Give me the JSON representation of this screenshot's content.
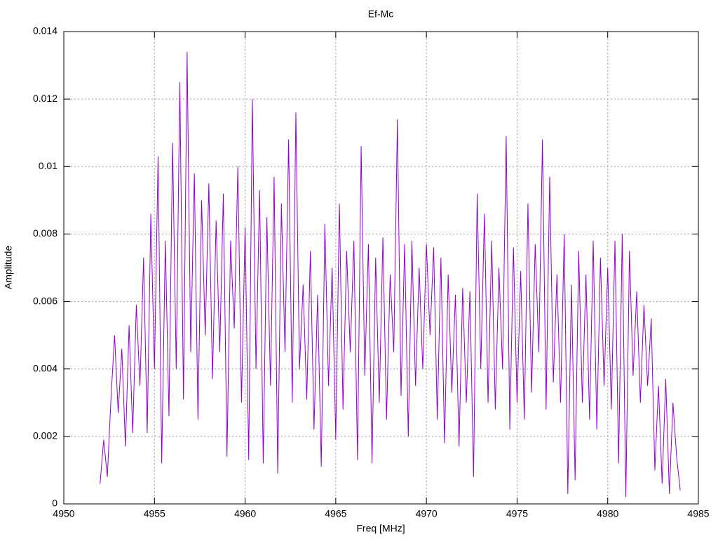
{
  "chart_data": {
    "type": "line",
    "title": "Ef-Mc",
    "x_label": "Freq [MHz]",
    "y_label": "Amplitude",
    "xlim": [
      4950,
      4985
    ],
    "xticks": [
      4950,
      4955,
      4960,
      4965,
      4970,
      4975,
      4980,
      4985
    ],
    "ylim": [
      0,
      0.014
    ],
    "yticks": [
      0,
      0.002,
      0.004,
      0.006,
      0.008,
      0.01,
      0.012,
      0.014
    ],
    "grid": true,
    "x": [
      4952,
      4952.2,
      4952.4,
      4952.6,
      4952.8,
      4953,
      4953.2,
      4953.4,
      4953.6,
      4953.8,
      4954,
      4954.2,
      4954.4,
      4954.6,
      4954.8,
      4955,
      4955.2,
      4955.4,
      4955.6,
      4955.8,
      4956,
      4956.2,
      4956.4,
      4956.6,
      4956.8,
      4957,
      4957.2,
      4957.4,
      4957.6,
      4957.8,
      4958,
      4958.2,
      4958.4,
      4958.6,
      4958.8,
      4959,
      4959.2,
      4959.4,
      4959.6,
      4959.8,
      4960,
      4960.2,
      4960.4,
      4960.6,
      4960.8,
      4961,
      4961.2,
      4961.4,
      4961.6,
      4961.8,
      4962,
      4962.2,
      4962.4,
      4962.6,
      4962.8,
      4963,
      4963.2,
      4963.4,
      4963.6,
      4963.8,
      4964,
      4964.2,
      4964.4,
      4964.6,
      4964.8,
      4965,
      4965.2,
      4965.4,
      4965.6,
      4965.8,
      4966,
      4966.2,
      4966.4,
      4966.6,
      4966.8,
      4967,
      4967.2,
      4967.4,
      4967.6,
      4967.8,
      4968,
      4968.2,
      4968.4,
      4968.6,
      4968.8,
      4969,
      4969.2,
      4969.4,
      4969.6,
      4969.8,
      4970,
      4970.2,
      4970.4,
      4970.6,
      4970.8,
      4971,
      4971.2,
      4971.4,
      4971.6,
      4971.8,
      4972,
      4972.2,
      4972.4,
      4972.6,
      4972.8,
      4973,
      4973.2,
      4973.4,
      4973.6,
      4973.8,
      4974,
      4974.2,
      4974.4,
      4974.6,
      4974.8,
      4975,
      4975.2,
      4975.4,
      4975.6,
      4975.8,
      4976,
      4976.2,
      4976.4,
      4976.6,
      4976.8,
      4977,
      4977.2,
      4977.4,
      4977.6,
      4977.8,
      4978,
      4978.2,
      4978.4,
      4978.6,
      4978.8,
      4979,
      4979.2,
      4979.4,
      4979.6,
      4979.8,
      4980,
      4980.2,
      4980.4,
      4980.6,
      4980.8,
      4981,
      4981.2,
      4981.4,
      4981.6,
      4981.8,
      4982,
      4982.2,
      4982.4,
      4982.6,
      4982.8,
      4983,
      4983.2,
      4983.4,
      4983.6,
      4983.8,
      4984
    ],
    "series": [
      {
        "name": "Ef-Mc",
        "color": "#9400d3",
        "values": [
          0.0006,
          0.0019,
          0.0008,
          0.0031,
          0.005,
          0.0027,
          0.0046,
          0.0017,
          0.0053,
          0.0021,
          0.0059,
          0.0035,
          0.0073,
          0.0021,
          0.0086,
          0.004,
          0.0103,
          0.0012,
          0.0078,
          0.0026,
          0.0107,
          0.004,
          0.0125,
          0.0031,
          0.0134,
          0.0045,
          0.0098,
          0.0025,
          0.009,
          0.005,
          0.0095,
          0.0037,
          0.0084,
          0.0045,
          0.0092,
          0.0014,
          0.0078,
          0.0052,
          0.01,
          0.003,
          0.0082,
          0.0013,
          0.012,
          0.004,
          0.0093,
          0.0012,
          0.0085,
          0.0035,
          0.0097,
          0.0009,
          0.0089,
          0.0045,
          0.0108,
          0.003,
          0.0116,
          0.004,
          0.0065,
          0.0031,
          0.0075,
          0.0022,
          0.0062,
          0.0011,
          0.0083,
          0.0035,
          0.007,
          0.0019,
          0.0089,
          0.0028,
          0.0075,
          0.0045,
          0.0078,
          0.0013,
          0.0106,
          0.0038,
          0.0077,
          0.0012,
          0.0073,
          0.003,
          0.0079,
          0.0025,
          0.0068,
          0.0045,
          0.0114,
          0.0032,
          0.0077,
          0.002,
          0.0078,
          0.0035,
          0.007,
          0.004,
          0.0077,
          0.005,
          0.0076,
          0.0025,
          0.0073,
          0.0018,
          0.0068,
          0.0033,
          0.0062,
          0.0017,
          0.0064,
          0.003,
          0.0063,
          0.0008,
          0.0092,
          0.004,
          0.0086,
          0.003,
          0.0078,
          0.0028,
          0.007,
          0.004,
          0.0109,
          0.0022,
          0.0076,
          0.003,
          0.0069,
          0.0025,
          0.0089,
          0.0033,
          0.0077,
          0.0045,
          0.0108,
          0.0028,
          0.0097,
          0.0036,
          0.0068,
          0.003,
          0.008,
          0.0003,
          0.0065,
          0.0007,
          0.0075,
          0.003,
          0.0068,
          0.0025,
          0.0078,
          0.0022,
          0.0073,
          0.0035,
          0.007,
          0.0028,
          0.0078,
          0.0012,
          0.008,
          0.0002,
          0.0075,
          0.0038,
          0.0063,
          0.003,
          0.0059,
          0.0035,
          0.0055,
          0.001,
          0.0035,
          0.0006,
          0.0037,
          0.0003,
          0.003,
          0.0014,
          0.0004
        ]
      }
    ]
  }
}
